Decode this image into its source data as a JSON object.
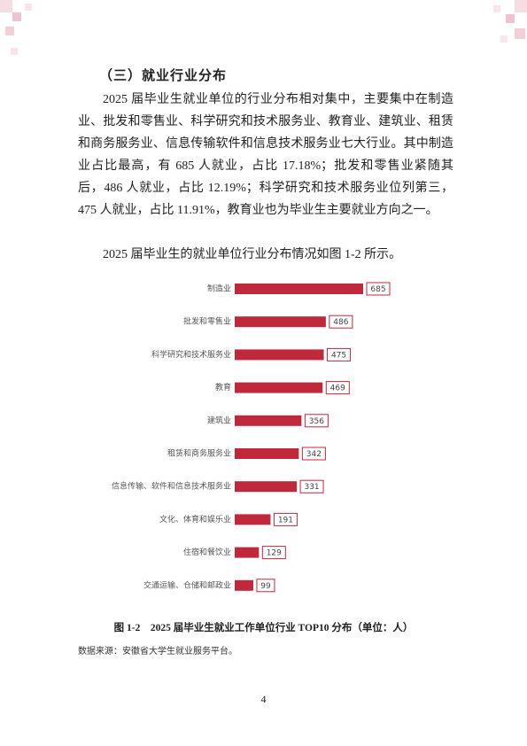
{
  "section_title": "（三）就业行业分布",
  "paragraphs": [
    "2025 届毕业生就业单位的行业分布相对集中，主要集中在制造业、批发和零售业、科学研究和技术服务业、教育业、建筑业、租赁和商务服务业、信息传输软件和信息技术服务业七大行业。其中制造业占比最高，有 685 人就业，占比 17.18%；批发和零售业紧随其后，486 人就业，占比 12.19%；科学研究和技术服务业位列第三，475 人就业，占比 11.91%，教育业也为毕业生主要就业方向之一。",
    "2025 届毕业生的就业单位行业分布情况如图 1-2 所示。"
  ],
  "chart_data": {
    "type": "hbar",
    "categories": [
      "制造业",
      "批发和零售业",
      "科学研究和技术服务业",
      "教育",
      "建筑业",
      "租赁和商务服务业",
      "信息传输、软件和信息技术服务业",
      "文化、体育和娱乐业",
      "住宿和餐饮业",
      "交通运输、仓储和邮政业"
    ],
    "values": [
      685,
      486,
      475,
      469,
      356,
      342,
      331,
      191,
      129,
      99
    ],
    "color": "#c0283c"
  },
  "caption": "图 1-2　2025 届毕业生就业工作单位行业 TOP10 分布（单位：人）",
  "source": "数据来源：安徽省大学生就业服务平台。",
  "page_number": "4"
}
